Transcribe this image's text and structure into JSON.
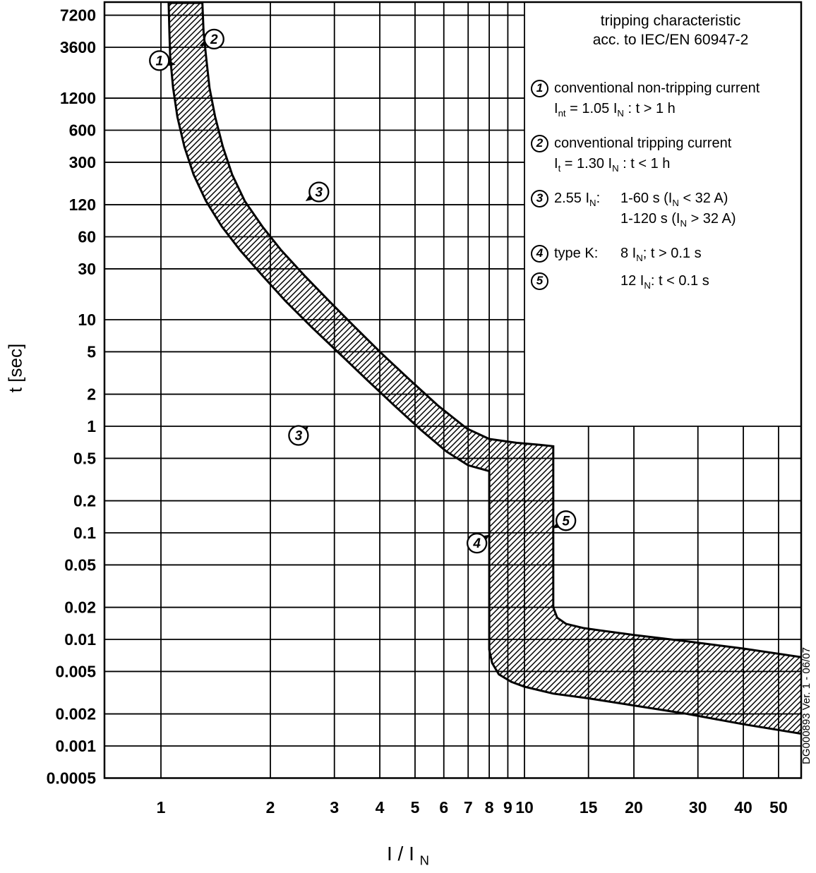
{
  "chart_data": {
    "type": "area",
    "title": "tripping characteristic acc. to IEC/EN 60947-2",
    "xlabel": "I / IN",
    "ylabel": "t [sec]",
    "x_scale": "log",
    "y_scale": "log",
    "xlim": [
      0.7,
      58
    ],
    "ylim": [
      0.0005,
      9400
    ],
    "grid": "on",
    "x_ticks": [
      {
        "v": 1,
        "label": "1"
      },
      {
        "v": 2,
        "label": "2"
      },
      {
        "v": 3,
        "label": "3"
      },
      {
        "v": 4,
        "label": "4"
      },
      {
        "v": 5,
        "label": "5"
      },
      {
        "v": 6,
        "label": "6"
      },
      {
        "v": 7,
        "label": "7"
      },
      {
        "v": 8,
        "label": "8"
      },
      {
        "v": 9,
        "label": "9"
      },
      {
        "v": 10,
        "label": "10"
      },
      {
        "v": 15,
        "label": "15"
      },
      {
        "v": 20,
        "label": "20"
      },
      {
        "v": 30,
        "label": "30"
      },
      {
        "v": 40,
        "label": "40"
      },
      {
        "v": 50,
        "label": "50"
      }
    ],
    "y_ticks": [
      {
        "v": 7200,
        "label": "7200"
      },
      {
        "v": 3600,
        "label": "3600"
      },
      {
        "v": 1200,
        "label": "1200"
      },
      {
        "v": 600,
        "label": "600"
      },
      {
        "v": 300,
        "label": "300"
      },
      {
        "v": 120,
        "label": "120"
      },
      {
        "v": 60,
        "label": "60"
      },
      {
        "v": 30,
        "label": "30"
      },
      {
        "v": 10,
        "label": "10"
      },
      {
        "v": 5,
        "label": "5"
      },
      {
        "v": 2,
        "label": "2"
      },
      {
        "v": 1,
        "label": "1"
      },
      {
        "v": 0.5,
        "label": "0.5"
      },
      {
        "v": 0.2,
        "label": "0.2"
      },
      {
        "v": 0.1,
        "label": "0.1"
      },
      {
        "v": 0.05,
        "label": "0.05"
      },
      {
        "v": 0.02,
        "label": "0.02"
      },
      {
        "v": 0.01,
        "label": "0.01"
      },
      {
        "v": 0.005,
        "label": "0.005"
      },
      {
        "v": 0.002,
        "label": "0.002"
      },
      {
        "v": 0.001,
        "label": "0.001"
      },
      {
        "v": 0.0005,
        "label": "0.0005"
      }
    ],
    "band": {
      "name": "tripping tolerance band (type K)",
      "hatch": true,
      "lower": [
        [
          1.05,
          9400
        ],
        [
          1.055,
          5000
        ],
        [
          1.06,
          3000
        ],
        [
          1.08,
          1500
        ],
        [
          1.11,
          800
        ],
        [
          1.16,
          420
        ],
        [
          1.23,
          230
        ],
        [
          1.33,
          130
        ],
        [
          1.47,
          75
        ],
        [
          1.65,
          45
        ],
        [
          1.9,
          26
        ],
        [
          2.2,
          15
        ],
        [
          2.6,
          8.5
        ],
        [
          3.1,
          4.8
        ],
        [
          3.7,
          2.7
        ],
        [
          4.4,
          1.55
        ],
        [
          5.2,
          0.92
        ],
        [
          6.1,
          0.58
        ],
        [
          7.0,
          0.43
        ],
        [
          8.0,
          0.38
        ],
        [
          8.0,
          0.008
        ],
        [
          8.15,
          0.006
        ],
        [
          8.5,
          0.0047
        ],
        [
          9.2,
          0.004
        ],
        [
          10.0,
          0.0036
        ],
        [
          12.0,
          0.0031
        ],
        [
          15.0,
          0.0028
        ],
        [
          20.0,
          0.0024
        ],
        [
          28.0,
          0.002
        ],
        [
          40.0,
          0.0016
        ],
        [
          58.0,
          0.0013
        ]
      ],
      "upper": [
        [
          1.3,
          9400
        ],
        [
          1.31,
          5000
        ],
        [
          1.33,
          3000
        ],
        [
          1.36,
          1500
        ],
        [
          1.41,
          800
        ],
        [
          1.48,
          420
        ],
        [
          1.57,
          230
        ],
        [
          1.7,
          130
        ],
        [
          1.9,
          75
        ],
        [
          2.14,
          45
        ],
        [
          2.48,
          26
        ],
        [
          2.9,
          15
        ],
        [
          3.42,
          8.5
        ],
        [
          4.05,
          4.8
        ],
        [
          4.85,
          2.7
        ],
        [
          5.8,
          1.55
        ],
        [
          6.95,
          0.95
        ],
        [
          8.0,
          0.76
        ],
        [
          9.5,
          0.7
        ],
        [
          11.0,
          0.67
        ],
        [
          12.0,
          0.65
        ],
        [
          12.0,
          0.02
        ],
        [
          12.3,
          0.016
        ],
        [
          13.0,
          0.014
        ],
        [
          14.5,
          0.0128
        ],
        [
          16.0,
          0.0122
        ],
        [
          20.0,
          0.011
        ],
        [
          28.0,
          0.0096
        ],
        [
          40.0,
          0.0082
        ],
        [
          58.0,
          0.0068
        ]
      ]
    },
    "markers": [
      {
        "label": "1",
        "x": 0.99,
        "t": 2700,
        "tip": [
          23,
          6
        ]
      },
      {
        "label": "2",
        "x": 1.4,
        "t": 4300,
        "tip": [
          -21,
          10
        ]
      },
      {
        "label": "3",
        "x": 2.72,
        "t": 158,
        "tip": [
          -19,
          13
        ]
      },
      {
        "label": "3",
        "x": 2.39,
        "t": 0.82,
        "tip": [
          14,
          -13
        ]
      },
      {
        "label": "4",
        "x": 7.4,
        "t": 0.08,
        "tip": [
          18,
          -12
        ]
      },
      {
        "label": "5",
        "x": 13.0,
        "t": 0.13,
        "tip": [
          -19,
          11
        ]
      }
    ]
  },
  "legend": {
    "title_line1": "tripping characteristic",
    "title_line2": "acc. to IEC/EN 60947-2",
    "items": [
      {
        "num": "1",
        "line1": [
          {
            "t": "conventional non-tripping current"
          }
        ],
        "line2": [
          {
            "t": "I"
          },
          {
            "t": "nt",
            "sub": true
          },
          {
            "t": " = 1.05 I"
          },
          {
            "t": "N",
            "sub": true
          },
          {
            "t": " : t > 1 h"
          }
        ]
      },
      {
        "num": "2",
        "line1": [
          {
            "t": "conventional tripping current"
          }
        ],
        "line2": [
          {
            "t": "I"
          },
          {
            "t": "t",
            "sub": true
          },
          {
            "t": " = 1.30 I"
          },
          {
            "t": "N",
            "sub": true
          },
          {
            "t": " : t < 1 h"
          }
        ]
      },
      {
        "num": "3",
        "label": [
          {
            "t": "2.55 I"
          },
          {
            "t": "N",
            "sub": true
          },
          {
            "t": ":"
          }
        ],
        "r1": [
          {
            "t": "1-60 s (I"
          },
          {
            "t": "N",
            "sub": true
          },
          {
            "t": " < 32 A)"
          }
        ],
        "r2": [
          {
            "t": "1-120 s (I"
          },
          {
            "t": "N",
            "sub": true
          },
          {
            "t": " > 32 A)"
          }
        ]
      },
      {
        "num": "4",
        "label": [
          {
            "t": "type K:"
          }
        ],
        "r1": [
          {
            "t": "8 I"
          },
          {
            "t": "N",
            "sub": true
          },
          {
            "t": "; t > 0.1 s"
          }
        ]
      },
      {
        "num": "5",
        "label": [],
        "r1": [
          {
            "t": "12 I"
          },
          {
            "t": "N",
            "sub": true
          },
          {
            "t": ": t < 0.1 s"
          }
        ]
      }
    ]
  },
  "axes": {
    "y_title": "t [sec]",
    "x_title": [
      {
        "t": "I / I "
      },
      {
        "t": "N",
        "sub": true
      }
    ]
  },
  "footer": {
    "doc_ref": "DG000893 Ver. 1 - 06/07"
  }
}
